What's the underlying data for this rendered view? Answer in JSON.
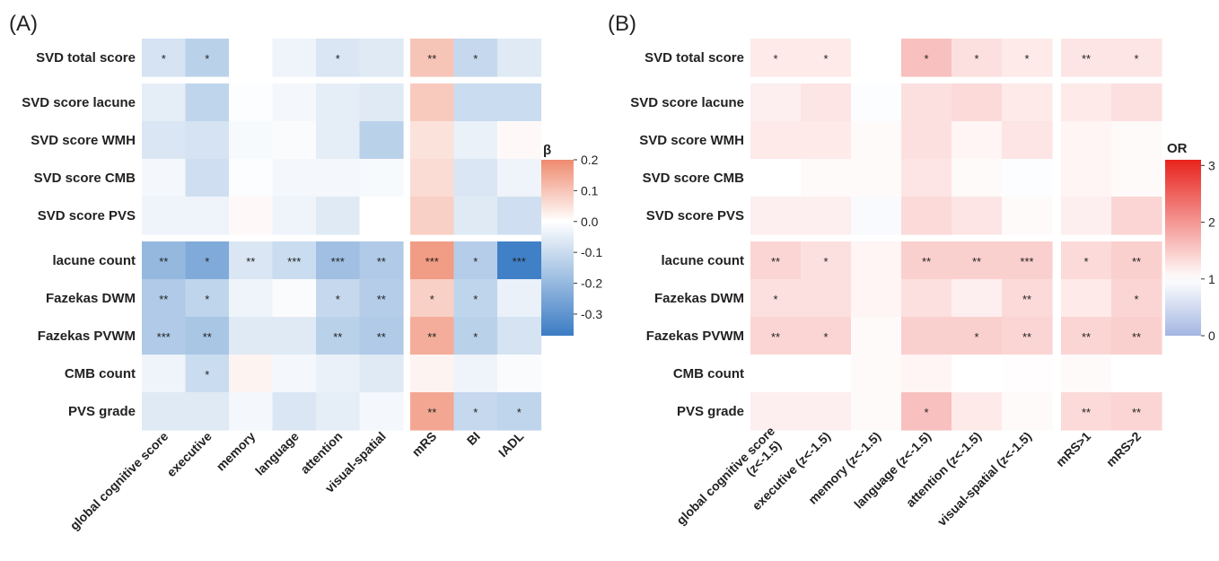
{
  "chart_data": [
    {
      "type": "heatmap",
      "panel_label": "(A)",
      "legend_title": "β",
      "color_scale": {
        "low": "#3b7cc4",
        "mid": "#ffffff",
        "high": "#ef8a6e",
        "min": -0.37,
        "max": 0.2
      },
      "legend_ticks": [
        0.2,
        0.1,
        0.0,
        -0.1,
        -0.2,
        -0.3
      ],
      "legend_tick_labels": [
        "0.2",
        "0.1",
        "0.0",
        "-0.1",
        "-0.2",
        "-0.3"
      ],
      "rows": [
        "SVD total score",
        "SVD score lacune",
        "SVD score WMH",
        "SVD score CMB",
        "SVD score PVS",
        "lacune count",
        "Fazekas DWM",
        "Fazekas PVWM",
        "CMB count",
        "PVS grade"
      ],
      "row_groups": [
        [
          0
        ],
        [
          1,
          2,
          3,
          4
        ],
        [
          5,
          6,
          7,
          8,
          9
        ]
      ],
      "columns": [
        "global cognitive score",
        "executive",
        "memory",
        "language",
        "attention",
        "visual-spatial",
        "mRS",
        "BI",
        "IADL"
      ],
      "column_groups": [
        [
          0,
          1,
          2,
          3,
          4,
          5
        ],
        [
          6,
          7,
          8
        ]
      ],
      "values": [
        [
          -0.08,
          -0.13,
          0.0,
          -0.03,
          -0.07,
          -0.06,
          0.1,
          -0.11,
          -0.06
        ],
        [
          -0.05,
          -0.12,
          -0.005,
          -0.02,
          -0.05,
          -0.06,
          0.09,
          -0.1,
          -0.1
        ],
        [
          -0.07,
          -0.08,
          -0.015,
          -0.01,
          -0.05,
          -0.13,
          0.05,
          -0.04,
          0.01
        ],
        [
          -0.02,
          -0.09,
          -0.005,
          -0.02,
          -0.02,
          -0.015,
          0.06,
          -0.07,
          -0.03
        ],
        [
          -0.03,
          -0.03,
          0.01,
          -0.03,
          -0.06,
          0.0,
          0.08,
          -0.06,
          -0.09
        ],
        [
          -0.2,
          -0.24,
          -0.07,
          -0.1,
          -0.18,
          -0.15,
          0.17,
          -0.14,
          -0.36
        ],
        [
          -0.15,
          -0.12,
          -0.03,
          -0.01,
          -0.11,
          -0.14,
          0.08,
          -0.12,
          -0.04
        ],
        [
          -0.15,
          -0.16,
          -0.06,
          -0.06,
          -0.13,
          -0.15,
          0.14,
          -0.13,
          -0.08
        ],
        [
          -0.03,
          -0.1,
          0.02,
          -0.02,
          -0.04,
          -0.06,
          0.02,
          -0.03,
          -0.01
        ],
        [
          -0.06,
          -0.06,
          -0.02,
          -0.07,
          -0.05,
          -0.02,
          0.15,
          -0.11,
          -0.12
        ]
      ],
      "annotations": [
        [
          "*",
          "*",
          "",
          "",
          "*",
          "",
          "**",
          "*",
          ""
        ],
        [
          "",
          "",
          "",
          "",
          "",
          "",
          "",
          "",
          ""
        ],
        [
          "",
          "",
          "",
          "",
          "",
          "",
          "",
          "",
          ""
        ],
        [
          "",
          "",
          "",
          "",
          "",
          "",
          "",
          "",
          ""
        ],
        [
          "",
          "",
          "",
          "",
          "",
          "",
          "",
          "",
          ""
        ],
        [
          "**",
          "*",
          "**",
          "***",
          "***",
          "**",
          "***",
          "*",
          "***"
        ],
        [
          "**",
          "*",
          "",
          "",
          "*",
          "**",
          "*",
          "*",
          ""
        ],
        [
          "***",
          "**",
          "",
          "",
          "**",
          "**",
          "**",
          "*",
          ""
        ],
        [
          "",
          "*",
          "",
          "",
          "",
          "",
          "",
          "",
          ""
        ],
        [
          "",
          "",
          "",
          "",
          "",
          "",
          "**",
          "*",
          "*"
        ]
      ]
    },
    {
      "type": "heatmap",
      "panel_label": "(B)",
      "legend_title": "OR",
      "color_scale": {
        "low": "#a3b6e2",
        "mid": "#ffffff",
        "high": "#e8231c",
        "min": 0,
        "max": 3.1
      },
      "legend_ticks": [
        3,
        2,
        1,
        0
      ],
      "legend_tick_labels": [
        "3",
        "2",
        "1",
        "0"
      ],
      "rows": [
        "SVD total score",
        "SVD score lacune",
        "SVD score WMH",
        "SVD score CMB",
        "SVD score PVS",
        "lacune count",
        "Fazekas DWM",
        "Fazekas PVWM",
        "CMB count",
        "PVS grade"
      ],
      "row_groups": [
        [
          0
        ],
        [
          1,
          2,
          3,
          4
        ],
        [
          5,
          6,
          7,
          8,
          9
        ]
      ],
      "columns": [
        "global cognitive score (z<-1.5)",
        "executive (z<-1.5)",
        "memory (z<-1.5)",
        "language (z<-1.5)",
        "attention (z<-1.5)",
        "visual-spatial (z<-1.5)",
        "mRS>1",
        "mRS>2"
      ],
      "column_groups": [
        [
          0,
          1,
          2,
          3,
          4,
          5
        ],
        [
          6,
          7
        ]
      ],
      "values": [
        [
          1.2,
          1.2,
          1.0,
          1.6,
          1.3,
          1.2,
          1.25,
          1.25
        ],
        [
          1.15,
          1.25,
          0.97,
          1.3,
          1.35,
          1.2,
          1.2,
          1.3
        ],
        [
          1.2,
          1.2,
          1.05,
          1.3,
          1.1,
          1.25,
          1.1,
          1.05
        ],
        [
          1.0,
          1.05,
          1.05,
          1.25,
          1.05,
          0.97,
          1.1,
          1.05
        ],
        [
          1.15,
          1.15,
          0.93,
          1.35,
          1.25,
          1.05,
          1.15,
          1.4
        ],
        [
          1.4,
          1.3,
          1.1,
          1.45,
          1.45,
          1.45,
          1.35,
          1.45
        ],
        [
          1.3,
          1.3,
          1.1,
          1.3,
          1.15,
          1.35,
          1.2,
          1.4
        ],
        [
          1.4,
          1.4,
          1.05,
          1.45,
          1.45,
          1.4,
          1.4,
          1.45
        ],
        [
          1.0,
          1.0,
          1.05,
          1.1,
          1.0,
          1.02,
          1.05,
          1.0
        ],
        [
          1.15,
          1.15,
          1.05,
          1.6,
          1.2,
          1.05,
          1.35,
          1.4
        ]
      ],
      "annotations": [
        [
          "*",
          "*",
          "",
          "*",
          "*",
          "*",
          "**",
          "*"
        ],
        [
          "",
          "",
          "",
          "",
          "",
          "",
          "",
          ""
        ],
        [
          "",
          "",
          "",
          "",
          "",
          "",
          "",
          ""
        ],
        [
          "",
          "",
          "",
          "",
          "",
          "",
          "",
          ""
        ],
        [
          "",
          "",
          "",
          "",
          "",
          "",
          "",
          ""
        ],
        [
          "**",
          "*",
          "",
          "**",
          "**",
          "***",
          "*",
          "**"
        ],
        [
          "*",
          "",
          "",
          "",
          "",
          "**",
          "",
          "*"
        ],
        [
          "**",
          "*",
          "",
          "",
          "*",
          "**",
          "**",
          "**"
        ],
        [
          "",
          "",
          "",
          "",
          "",
          "",
          "",
          ""
        ],
        [
          "",
          "",
          "",
          "*",
          "",
          "",
          "**",
          "**"
        ]
      ]
    }
  ]
}
